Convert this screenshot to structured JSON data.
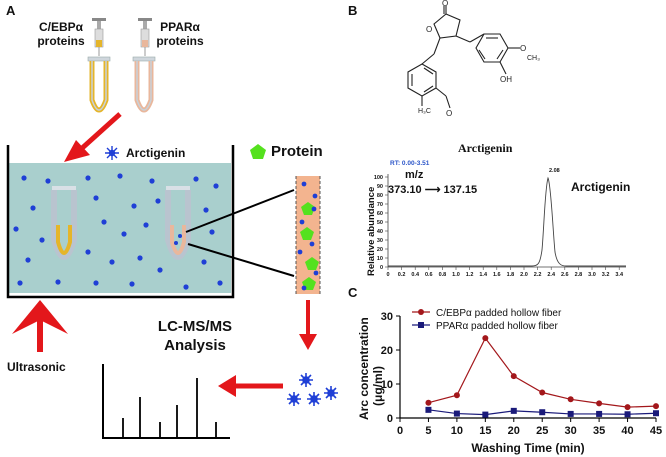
{
  "panels": {
    "a": {
      "letter": "A",
      "cebp_label_line1": "C/EBPα",
      "cebp_label_line2": "proteins",
      "ppar_label_line1": "PPARα",
      "ppar_label_line2": "proteins",
      "legend_arctigenin": "Arctigenin",
      "legend_protein": "Protein",
      "ultrasonic": "Ultrasonic",
      "lcms_line1": "LC-MS/MS",
      "lcms_line2": "Analysis",
      "colors": {
        "bath": "#a9cfcd",
        "dot": "#1f3fd6",
        "protein": "#55e11e",
        "fiber": "#f3b48f",
        "arrow": "#e3171b",
        "cebp_tube": "#e5b52a",
        "ppar_tube": "#e9b79c"
      }
    },
    "b": {
      "letter": "B",
      "compound_name": "Arctigenin",
      "rt_label": "RT: 0.00-3.51",
      "mz_label": "m/z",
      "transition": "373.10 ⟶ 137.15",
      "peak_label": "2.08",
      "trace_label": "Arctigenin",
      "ylabel": "Relative abundance",
      "y_ticks": [
        "0",
        "10",
        "20",
        "30",
        "40",
        "50",
        "60",
        "70",
        "80",
        "90",
        "100"
      ],
      "x_ticks": [
        "0",
        "0.2",
        "0.4",
        "0.6",
        "0.8",
        "1.0",
        "1.2",
        "1.4",
        "1.6",
        "1.8",
        "2.0",
        "2.2",
        "2.4",
        "2.6",
        "2.8",
        "3.0",
        "3.2",
        "3.4"
      ],
      "structure_labels": {
        "o": "O",
        "oh": "OH",
        "och3_left": "H₃CO",
        "o_left": "O",
        "och3_right": "O",
        "ch3": "CH₃",
        "h3c": "H₃C"
      }
    },
    "c": {
      "letter": "C"
    }
  },
  "chart_data": {
    "type": "line",
    "xlabel": "Washing Time (min)",
    "ylabel": "Arc concentration (μg/ml)",
    "ylabel_line1": "Arc concentration",
    "ylabel_line2": "(μg/ml)",
    "xlim": [
      0,
      45
    ],
    "ylim": [
      0,
      30
    ],
    "x_ticks": [
      0,
      5,
      10,
      15,
      20,
      25,
      30,
      35,
      40,
      45
    ],
    "y_ticks": [
      0,
      10,
      20,
      30
    ],
    "legend_position": "top-left",
    "x": [
      5,
      10,
      15,
      20,
      25,
      30,
      35,
      40,
      45
    ],
    "series": [
      {
        "name": "C/EBPα  padded hollow fiber",
        "color": "#a3171b",
        "marker": "circle",
        "values": [
          4.5,
          6.7,
          23.5,
          12.3,
          7.5,
          5.5,
          4.3,
          3.2,
          3.5
        ]
      },
      {
        "name": "PPARα  padded hollow fiber",
        "color": "#1a1a7a",
        "marker": "square",
        "values": [
          2.4,
          1.3,
          1.0,
          2.1,
          1.7,
          1.2,
          1.2,
          1.1,
          1.4
        ]
      }
    ]
  }
}
